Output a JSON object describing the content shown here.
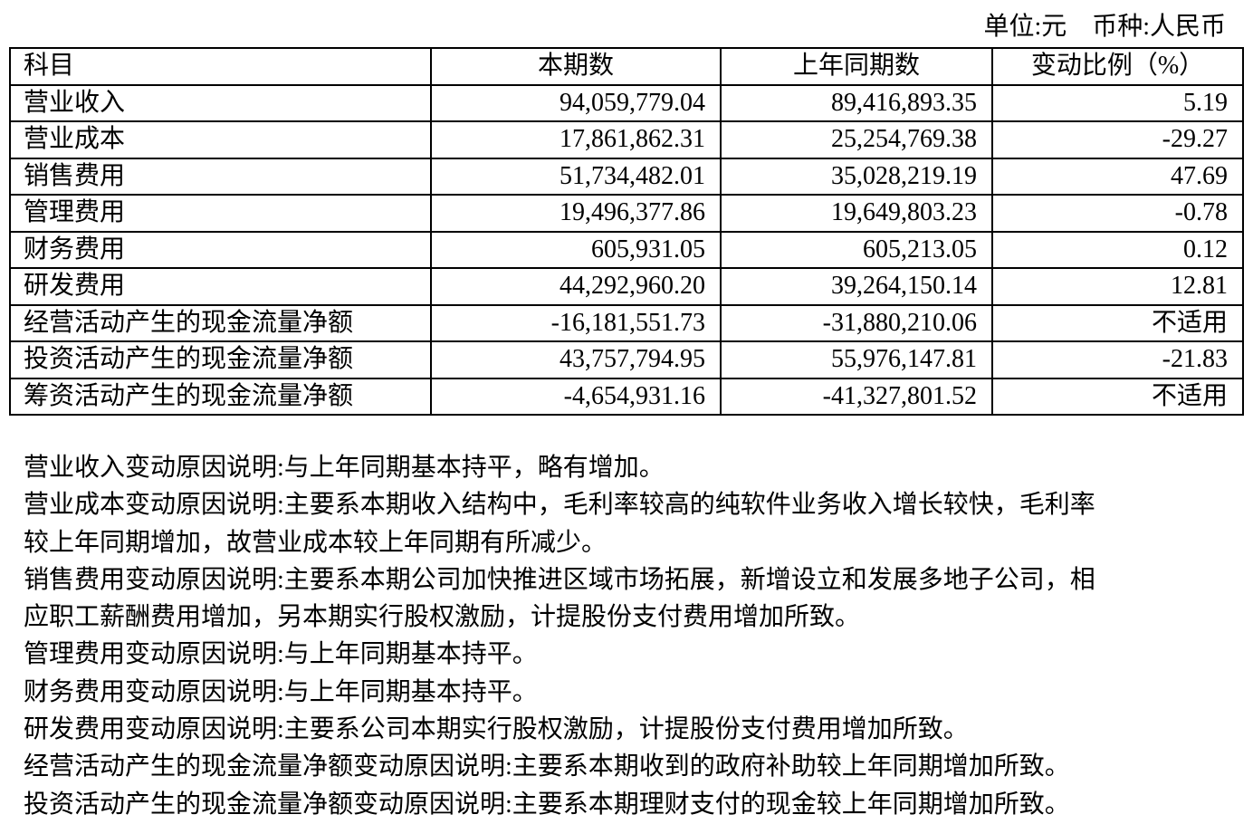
{
  "unit_line": "单位:元    币种:人民币",
  "table": {
    "headers": [
      "科目",
      "本期数",
      "上年同期数",
      "变动比例（%）"
    ],
    "rows": [
      [
        "营业收入",
        "94,059,779.04",
        "89,416,893.35",
        "5.19"
      ],
      [
        "营业成本",
        "17,861,862.31",
        "25,254,769.38",
        "-29.27"
      ],
      [
        "销售费用",
        "51,734,482.01",
        "35,028,219.19",
        "47.69"
      ],
      [
        "管理费用",
        "19,496,377.86",
        "19,649,803.23",
        "-0.78"
      ],
      [
        "财务费用",
        "605,931.05",
        "605,213.05",
        "0.12"
      ],
      [
        "研发费用",
        "44,292,960.20",
        "39,264,150.14",
        "12.81"
      ],
      [
        "经营活动产生的现金流量净额",
        "-16,181,551.73",
        "-31,880,210.06",
        "不适用"
      ],
      [
        "投资活动产生的现金流量净额",
        "43,757,794.95",
        "55,976,147.81",
        "-21.83"
      ],
      [
        "筹资活动产生的现金流量净额",
        "-4,654,931.16",
        "-41,327,801.52",
        "不适用"
      ]
    ]
  },
  "notes": [
    [
      "营业收入变动原因说明:与上年同期基本持平，略有增加。"
    ],
    [
      "营业成本变动原因说明:主要系本期收入结构中，毛利率较高的纯软件业务收入增长较快，毛利率",
      "较上年同期增加，故营业成本较上年同期有所减少。"
    ],
    [
      "销售费用变动原因说明:主要系本期公司加快推进区域市场拓展，新增设立和发展多地子公司，相",
      "应职工薪酬费用增加，另本期实行股权激励，计提股份支付费用增加所致。"
    ],
    [
      "管理费用变动原因说明:与上年同期基本持平。"
    ],
    [
      "财务费用变动原因说明:与上年同期基本持平。"
    ],
    [
      "研发费用变动原因说明:主要系公司本期实行股权激励，计提股份支付费用增加所致。"
    ],
    [
      "经营活动产生的现金流量净额变动原因说明:主要系本期收到的政府补助较上年同期增加所致。"
    ],
    [
      "投资活动产生的现金流量净额变动原因说明:主要系本期理财支付的现金较上年同期增加所致。"
    ]
  ]
}
